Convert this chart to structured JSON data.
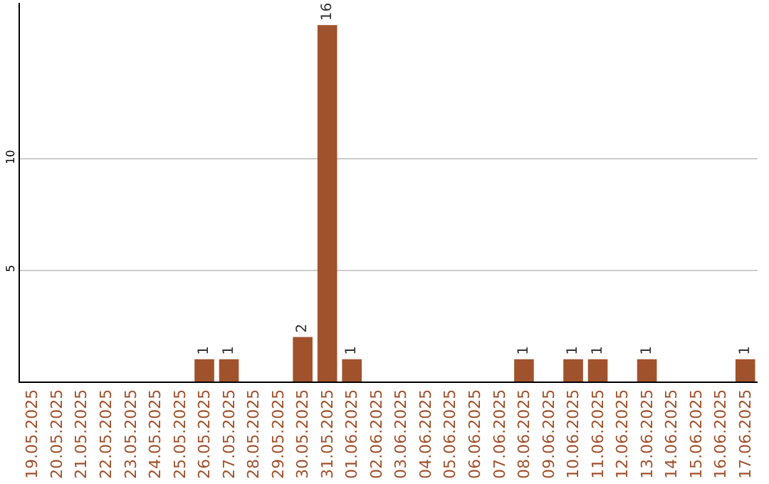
{
  "chart_data": {
    "type": "bar",
    "categories": [
      "19.05.2025",
      "20.05.2025",
      "21.05.2025",
      "22.05.2025",
      "23.05.2025",
      "24.05.2025",
      "25.05.2025",
      "26.05.2025",
      "27.05.2025",
      "28.05.2025",
      "29.05.2025",
      "30.05.2025",
      "31.05.2025",
      "01.06.2025",
      "02.06.2025",
      "03.06.2025",
      "04.06.2025",
      "05.06.2025",
      "06.06.2025",
      "07.06.2025",
      "08.06.2025",
      "09.06.2025",
      "10.06.2025",
      "11.06.2025",
      "12.06.2025",
      "13.06.2025",
      "14.06.2025",
      "15.06.2025",
      "16.06.2025",
      "17.06.2025"
    ],
    "values": [
      0,
      0,
      0,
      0,
      0,
      0,
      0,
      1,
      1,
      0,
      0,
      2,
      16,
      1,
      0,
      0,
      0,
      0,
      0,
      0,
      1,
      0,
      1,
      1,
      0,
      1,
      0,
      0,
      0,
      1
    ],
    "value_labels": [
      null,
      null,
      null,
      null,
      null,
      null,
      null,
      "1",
      "1",
      null,
      null,
      "2",
      "16",
      "1",
      null,
      null,
      null,
      null,
      null,
      null,
      "1",
      null,
      "1",
      "1",
      null,
      "1",
      null,
      null,
      null,
      "1"
    ],
    "color": "#a0522d",
    "ylim": [
      0,
      17
    ],
    "yticks": [
      5,
      10
    ],
    "grid": "y"
  }
}
